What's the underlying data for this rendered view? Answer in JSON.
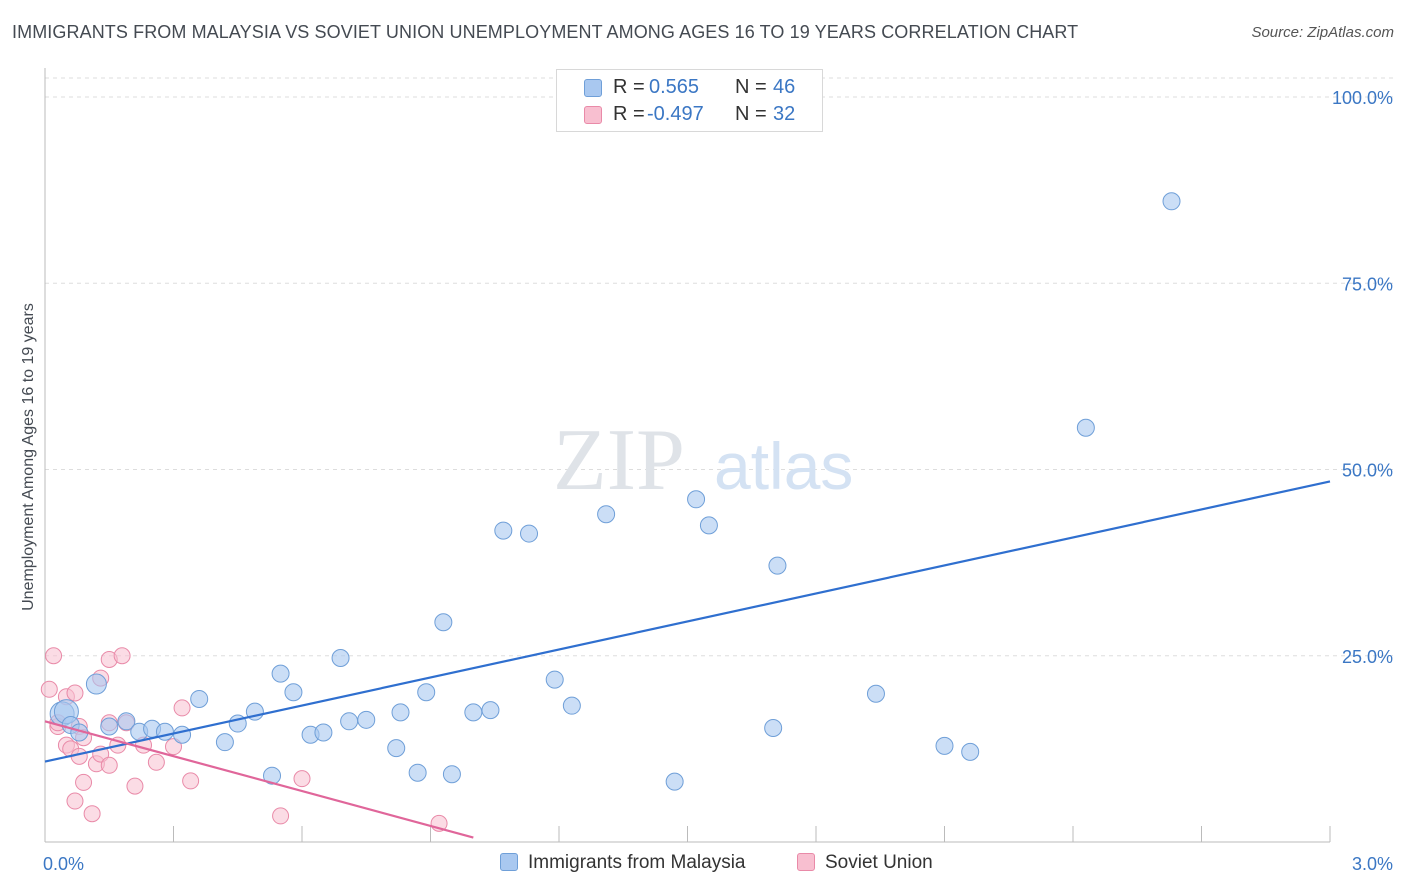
{
  "title": "IMMIGRANTS FROM MALAYSIA VS SOVIET UNION UNEMPLOYMENT AMONG AGES 16 TO 19 YEARS CORRELATION CHART",
  "source": "Source: ZipAtlas.com",
  "watermark": {
    "zip": "ZIP",
    "atlas": "atlas"
  },
  "legend": {
    "rows": [
      {
        "r_label": "R =",
        "r_value": "0.565",
        "n_label": "N =",
        "n_value": "46",
        "color": "#a9c8f0",
        "border": "#6f9fd8"
      },
      {
        "r_label": "R =",
        "r_value": "-0.497",
        "n_label": "N =",
        "n_value": "32",
        "color": "#f8bfd0",
        "border": "#e98aa8"
      }
    ]
  },
  "bottom_legend": {
    "series1": "Immigrants from Malaysia",
    "series2": "Soviet Union"
  },
  "colors": {
    "blue_fill": "#a9c8f0",
    "blue_stroke": "#6f9fd8",
    "blue_line": "#2f6fcf",
    "pink_fill": "#f8bfd0",
    "pink_stroke": "#e98aa8",
    "pink_line": "#e0669a",
    "tick_label": "#3b77c4",
    "grid": "#dddddd"
  },
  "chart_data": {
    "type": "scatter",
    "title": "IMMIGRANTS FROM MALAYSIA VS SOVIET UNION UNEMPLOYMENT AMONG AGES 16 TO 19 YEARS CORRELATION CHART",
    "xlabel": "",
    "ylabel": "Unemployment Among Ages 16 to 19 years",
    "xlim": [
      0,
      3.0
    ],
    "ylim": [
      0,
      100
    ],
    "x_tick_labels": [
      "0.0%",
      "3.0%"
    ],
    "y_ticks": [
      25,
      50,
      75,
      100
    ],
    "y_tick_labels": [
      "25.0%",
      "50.0%",
      "75.0%",
      "100.0%"
    ],
    "grid": true,
    "legend_position": "top-center",
    "series": [
      {
        "name": "Immigrants from Malaysia",
        "points": [
          [
            0.04,
            17.2
          ],
          [
            0.05,
            17.5
          ],
          [
            0.06,
            15.7
          ],
          [
            0.08,
            14.7
          ],
          [
            0.12,
            21.2
          ],
          [
            0.15,
            15.5
          ],
          [
            0.19,
            16.2
          ],
          [
            0.22,
            14.8
          ],
          [
            0.25,
            15.2
          ],
          [
            0.28,
            14.8
          ],
          [
            0.32,
            14.4
          ],
          [
            0.36,
            19.2
          ],
          [
            0.42,
            13.4
          ],
          [
            0.45,
            15.9
          ],
          [
            0.49,
            17.5
          ],
          [
            0.53,
            8.9
          ],
          [
            0.55,
            22.6
          ],
          [
            0.58,
            20.1
          ],
          [
            0.62,
            14.4
          ],
          [
            0.65,
            14.7
          ],
          [
            0.69,
            24.7
          ],
          [
            0.71,
            16.2
          ],
          [
            0.75,
            16.4
          ],
          [
            0.82,
            12.6
          ],
          [
            0.83,
            17.4
          ],
          [
            0.87,
            9.3
          ],
          [
            0.89,
            20.1
          ],
          [
            0.93,
            29.5
          ],
          [
            0.95,
            9.1
          ],
          [
            1.0,
            17.4
          ],
          [
            1.04,
            17.7
          ],
          [
            1.07,
            41.8
          ],
          [
            1.13,
            41.4
          ],
          [
            1.19,
            21.8
          ],
          [
            1.23,
            18.3
          ],
          [
            1.31,
            44.0
          ],
          [
            1.47,
            8.1
          ],
          [
            1.52,
            46.0
          ],
          [
            1.55,
            42.5
          ],
          [
            1.7,
            15.3
          ],
          [
            1.71,
            37.1
          ],
          [
            1.94,
            19.9
          ],
          [
            2.1,
            12.9
          ],
          [
            2.16,
            12.1
          ],
          [
            2.43,
            55.6
          ],
          [
            2.63,
            86.0
          ]
        ],
        "trend": {
          "x": [
            0.0,
            3.0
          ],
          "y": [
            10.8,
            48.4
          ]
        }
      },
      {
        "name": "Soviet Union",
        "points": [
          [
            0.01,
            20.5
          ],
          [
            0.02,
            25.0
          ],
          [
            0.03,
            15.5
          ],
          [
            0.03,
            16.0
          ],
          [
            0.05,
            13.0
          ],
          [
            0.05,
            19.5
          ],
          [
            0.06,
            12.5
          ],
          [
            0.07,
            20.0
          ],
          [
            0.07,
            5.5
          ],
          [
            0.08,
            15.5
          ],
          [
            0.08,
            11.5
          ],
          [
            0.09,
            14.0
          ],
          [
            0.09,
            8.0
          ],
          [
            0.11,
            3.8
          ],
          [
            0.12,
            10.5
          ],
          [
            0.13,
            11.8
          ],
          [
            0.13,
            22.0
          ],
          [
            0.15,
            16.0
          ],
          [
            0.15,
            10.3
          ],
          [
            0.15,
            24.5
          ],
          [
            0.17,
            13.0
          ],
          [
            0.18,
            25.0
          ],
          [
            0.19,
            16.0
          ],
          [
            0.21,
            7.5
          ],
          [
            0.23,
            13.0
          ],
          [
            0.26,
            10.7
          ],
          [
            0.3,
            12.8
          ],
          [
            0.32,
            18.0
          ],
          [
            0.34,
            8.2
          ],
          [
            0.55,
            3.5
          ],
          [
            0.6,
            8.5
          ],
          [
            0.92,
            2.5
          ]
        ],
        "trend": {
          "x": [
            0.0,
            1.0
          ],
          "y": [
            16.2,
            0.6
          ]
        }
      }
    ]
  }
}
